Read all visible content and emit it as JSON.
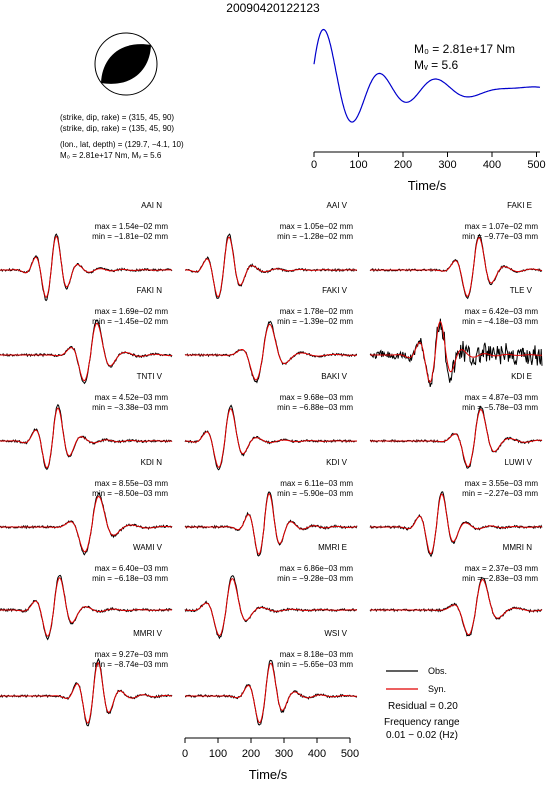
{
  "event_id": "20090420122123",
  "focal_mechanism": {
    "planes": [
      "(strike, dip, rake) = (315, 45, 90)",
      "(strike, dip, rake) = (135, 45, 90)"
    ],
    "location": "(lon., lat, depth) = (129.7, −4.1, 10)",
    "moment_line": "M₀ = 2.81e+17 Nm, Mᵥ = 5.6",
    "colors": {
      "compression": "#000000",
      "dilatation": "#ffffff"
    }
  },
  "stf": {
    "m0_label": "M₀ = 2.81e+17 Nm",
    "mw_label": "Mᵥ = 5.6",
    "color": "#0000cc",
    "xlabel": "Time/s",
    "xticks": [
      "0",
      "100",
      "200",
      "300",
      "400",
      "500"
    ]
  },
  "stations": [
    {
      "name": "AAI N",
      "max": "max = 1.54e−02 mm",
      "min": "min = −1.81e−02 mm"
    },
    {
      "name": "AAI V",
      "max": "max = 1.05e−02 mm",
      "min": "min = −1.28e−02 mm"
    },
    {
      "name": "FAKI E",
      "max": "max = 1.07e−02 mm",
      "min": "min = −9.77e−03 mm"
    },
    {
      "name": "FAKI N",
      "max": "max = 1.69e−02 mm",
      "min": "min = −1.45e−02 mm"
    },
    {
      "name": "FAKI V",
      "max": "max = 1.78e−02 mm",
      "min": "min = −1.39e−02 mm"
    },
    {
      "name": "TLE V",
      "max": "max = 6.42e−03 mm",
      "min": "min = −4.18e−03 mm"
    },
    {
      "name": "TNTI V",
      "max": "max = 4.52e−03 mm",
      "min": "min = −3.38e−03 mm"
    },
    {
      "name": "BAKI V",
      "max": "max = 9.68e−03 mm",
      "min": "min = −6.88e−03 mm"
    },
    {
      "name": "KDI E",
      "max": "max = 4.87e−03 mm",
      "min": "min = −5.78e−03 mm"
    },
    {
      "name": "KDI N",
      "max": "max = 8.55e−03 mm",
      "min": "min = −8.50e−03 mm"
    },
    {
      "name": "KDI V",
      "max": "max = 6.11e−03 mm",
      "min": "min = −5.90e−03 mm"
    },
    {
      "name": "LUWI V",
      "max": "max = 3.55e−03 mm",
      "min": "min = −2.27e−03 mm"
    },
    {
      "name": "WAMI V",
      "max": "max = 6.40e−03 mm",
      "min": "min = −6.18e−03 mm"
    },
    {
      "name": "MMRI E",
      "max": "max = 6.86e−03 mm",
      "min": "min = −9.28e−03 mm"
    },
    {
      "name": "MMRI N",
      "max": "max = 2.37e−03 mm",
      "min": "min = −2.83e−03 mm"
    },
    {
      "name": "MMRI V",
      "max": "max = 9.27e−03 mm",
      "min": "min = −8.74e−03 mm"
    },
    {
      "name": "WSI V",
      "max": "max = 8.18e−03 mm",
      "min": "min = −5.65e−03 mm"
    }
  ],
  "legend": {
    "obs": "Obs.",
    "syn": "Syn.",
    "obs_color": "#000000",
    "syn_color": "#e00000",
    "residual": "Residual = 0.20",
    "freq_title": "Frequency range",
    "freq_value": "0.01 − 0.02 (Hz)"
  },
  "waveform_axis": {
    "xlabel": "Time/s",
    "xticks": [
      "0",
      "100",
      "200",
      "300",
      "400",
      "500"
    ]
  }
}
